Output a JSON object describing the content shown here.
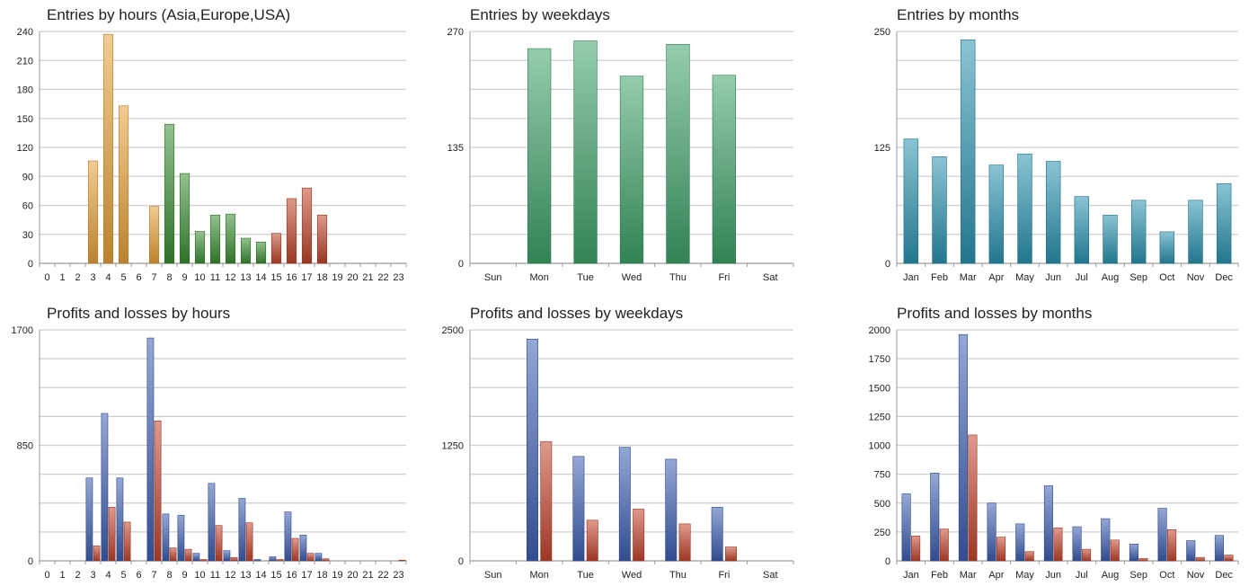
{
  "chart_data": [
    {
      "id": "entries-hours",
      "type": "bar",
      "title": "Entries by hours (Asia,Europe,USA)",
      "categories": [
        "0",
        "1",
        "2",
        "3",
        "4",
        "5",
        "6",
        "7",
        "8",
        "9",
        "10",
        "11",
        "12",
        "13",
        "14",
        "15",
        "16",
        "17",
        "18",
        "19",
        "20",
        "21",
        "22",
        "23"
      ],
      "series": [
        {
          "values": [
            0,
            0,
            0,
            106,
            237,
            163,
            0,
            59,
            144,
            93,
            33,
            50,
            51,
            26,
            22,
            31,
            67,
            78,
            50,
            0,
            0,
            0,
            0,
            0
          ]
        }
      ],
      "bar_colors_by_session": {
        "asia": "#e8a23a",
        "europe": "#3a8e34",
        "usa": "#c0452b"
      },
      "session_by_category": [
        "asia",
        "asia",
        "asia",
        "asia",
        "asia",
        "asia",
        "asia",
        "asia",
        "europe",
        "europe",
        "europe",
        "europe",
        "europe",
        "europe",
        "europe",
        "usa",
        "usa",
        "usa",
        "usa",
        "usa",
        "usa",
        "usa",
        "usa",
        "usa"
      ],
      "yticks": [
        0,
        30,
        60,
        90,
        120,
        150,
        180,
        210,
        240
      ],
      "ylim": [
        0,
        240
      ],
      "grid": true
    },
    {
      "id": "entries-weekdays",
      "type": "bar",
      "title": "Entries by weekdays",
      "categories": [
        "Sun",
        "Mon",
        "Tue",
        "Wed",
        "Thu",
        "Fri",
        "Sat"
      ],
      "series": [
        {
          "values": [
            0,
            250,
            259,
            218,
            255,
            219,
            0
          ]
        }
      ],
      "color": "#3fa36a",
      "yticks": [
        0,
        135,
        270
      ],
      "ylim": [
        0,
        270
      ],
      "grid": true
    },
    {
      "id": "entries-months",
      "type": "bar",
      "title": "Entries by months",
      "categories": [
        "Jan",
        "Feb",
        "Mar",
        "Apr",
        "May",
        "Jun",
        "Jul",
        "Aug",
        "Sep",
        "Oct",
        "Nov",
        "Dec"
      ],
      "series": [
        {
          "values": [
            134,
            115,
            241,
            106,
            118,
            110,
            72,
            52,
            68,
            34,
            68,
            86
          ]
        }
      ],
      "color": "#2a93b0",
      "yticks": [
        0,
        125,
        250
      ],
      "ylim": [
        0,
        250
      ],
      "grid": true
    },
    {
      "id": "pl-hours",
      "type": "bar",
      "title": "Profits and losses by hours",
      "categories": [
        "0",
        "1",
        "2",
        "3",
        "4",
        "5",
        "6",
        "7",
        "8",
        "9",
        "10",
        "11",
        "12",
        "13",
        "14",
        "15",
        "16",
        "17",
        "18",
        "19",
        "20",
        "21",
        "22",
        "23"
      ],
      "series": [
        {
          "values": [
            0,
            0,
            0,
            610,
            1085,
            610,
            0,
            1640,
            345,
            335,
            55,
            570,
            75,
            460,
            10,
            30,
            360,
            190,
            55,
            0,
            0,
            0,
            0,
            0
          ]
        },
        {
          "values": [
            0,
            0,
            0,
            110,
            395,
            285,
            0,
            1030,
            95,
            85,
            10,
            260,
            25,
            280,
            0,
            10,
            165,
            55,
            15,
            0,
            0,
            0,
            0,
            5
          ]
        }
      ],
      "colors": [
        "#3d5fb3",
        "#c4452d"
      ],
      "yticks": [
        0,
        850,
        1700
      ],
      "ylim": [
        0,
        1700
      ],
      "grid": true
    },
    {
      "id": "pl-weekdays",
      "type": "bar",
      "title": "Profits and losses by weekdays",
      "categories": [
        "Sun",
        "Mon",
        "Tue",
        "Wed",
        "Thu",
        "Fri",
        "Sat"
      ],
      "series": [
        {
          "values": [
            0,
            2400,
            1130,
            1230,
            1100,
            580,
            0
          ]
        },
        {
          "values": [
            0,
            1290,
            440,
            560,
            400,
            150,
            0
          ]
        }
      ],
      "colors": [
        "#3d5fb3",
        "#c4452d"
      ],
      "yticks": [
        0,
        1250,
        2500
      ],
      "ylim": [
        0,
        2500
      ],
      "grid": true
    },
    {
      "id": "pl-months",
      "type": "bar",
      "title": "Profits and losses by months",
      "categories": [
        "Jan",
        "Feb",
        "Mar",
        "Apr",
        "May",
        "Jun",
        "Jul",
        "Aug",
        "Sep",
        "Oct",
        "Nov",
        "Dec"
      ],
      "series": [
        {
          "values": [
            580,
            760,
            1960,
            500,
            320,
            650,
            295,
            365,
            145,
            455,
            175,
            220
          ]
        },
        {
          "values": [
            215,
            275,
            1090,
            205,
            80,
            285,
            100,
            180,
            20,
            270,
            30,
            50
          ]
        }
      ],
      "colors": [
        "#3d5fb3",
        "#c4452d"
      ],
      "yticks": [
        0,
        250,
        500,
        750,
        1000,
        1250,
        1500,
        1750,
        2000
      ],
      "ylim": [
        0,
        2000
      ],
      "grid": true
    }
  ]
}
